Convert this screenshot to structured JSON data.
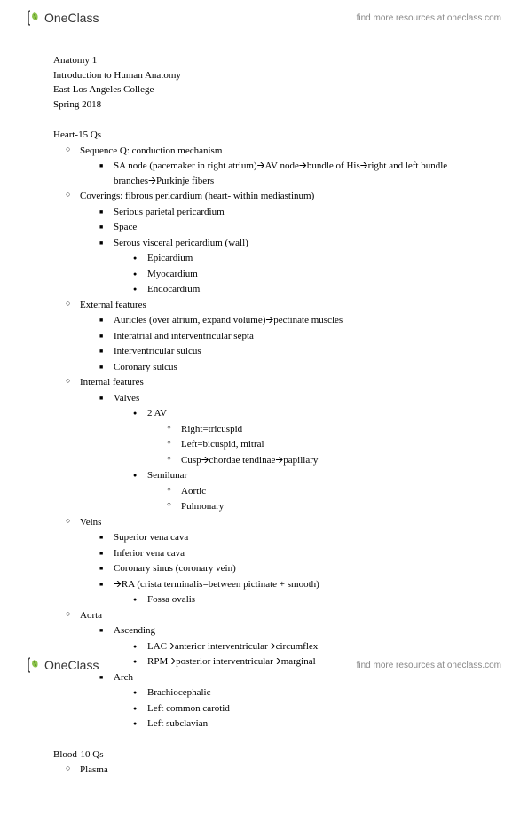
{
  "brand": {
    "name": "OneClass",
    "tagline": "find more resources at oneclass.com"
  },
  "meta": {
    "course": "Anatomy 1",
    "subtitle": "Introduction to Human Anatomy",
    "school": "East Los Angeles College",
    "term": "Spring 2018"
  },
  "sections": [
    {
      "title": "Heart-15 Qs",
      "items": [
        {
          "text": "Sequence Q: conduction mechanism",
          "items": [
            {
              "text": "SA node (pacemaker in right atrium)🡪AV node🡪bundle of His🡪right and left bundle branches🡪Purkinje fibers"
            }
          ]
        },
        {
          "text": "Coverings: fibrous pericardium (heart- within mediastinum)",
          "items": [
            {
              "text": "Serious parietal pericardium"
            },
            {
              "text": "Space"
            },
            {
              "text": "Serous visceral pericardium (wall)",
              "items": [
                {
                  "text": "Epicardium"
                },
                {
                  "text": "Myocardium"
                },
                {
                  "text": "Endocardium"
                }
              ]
            }
          ]
        },
        {
          "text": "External features",
          "items": [
            {
              "text": "Auricles (over atrium, expand volume)🡪pectinate muscles"
            },
            {
              "text": "Interatrial and interventricular septa"
            },
            {
              "text": "Interventricular sulcus"
            },
            {
              "text": "Coronary sulcus"
            }
          ]
        },
        {
          "text": "Internal features",
          "items": [
            {
              "text": "Valves",
              "items": [
                {
                  "text": "2 AV",
                  "items": [
                    {
                      "text": "Right=tricuspid"
                    },
                    {
                      "text": "Left=bicuspid, mitral"
                    },
                    {
                      "text": "Cusp🡪chordae tendinae🡪papillary"
                    }
                  ]
                },
                {
                  "text": "Semilunar",
                  "items": [
                    {
                      "text": "Aortic"
                    },
                    {
                      "text": "Pulmonary"
                    }
                  ]
                }
              ]
            }
          ]
        },
        {
          "text": "Veins",
          "items": [
            {
              "text": "Superior vena cava"
            },
            {
              "text": "Inferior vena cava"
            },
            {
              "text": "Coronary sinus (coronary vein)"
            },
            {
              "text": "🡪RA (crista terminalis=between pictinate + smooth)",
              "items": [
                {
                  "text": "Fossa ovalis"
                }
              ]
            }
          ]
        },
        {
          "text": "Aorta",
          "items": [
            {
              "text": "Ascending",
              "items": [
                {
                  "text": "LAC🡪anterior interventricular🡪circumflex"
                },
                {
                  "text": "RPM🡪posterior interventricular🡪marginal"
                }
              ]
            },
            {
              "text": "Arch",
              "items": [
                {
                  "text": "Brachiocephalic"
                },
                {
                  "text": "Left common carotid"
                },
                {
                  "text": "Left subclavian"
                }
              ]
            }
          ]
        }
      ]
    },
    {
      "title": "Blood-10 Qs",
      "items": [
        {
          "text": "Plasma"
        }
      ]
    }
  ],
  "colors": {
    "logo_leaf": "#8bc34a",
    "logo_stroke": "#444444",
    "text": "#000000",
    "meta_text": "#888888"
  }
}
